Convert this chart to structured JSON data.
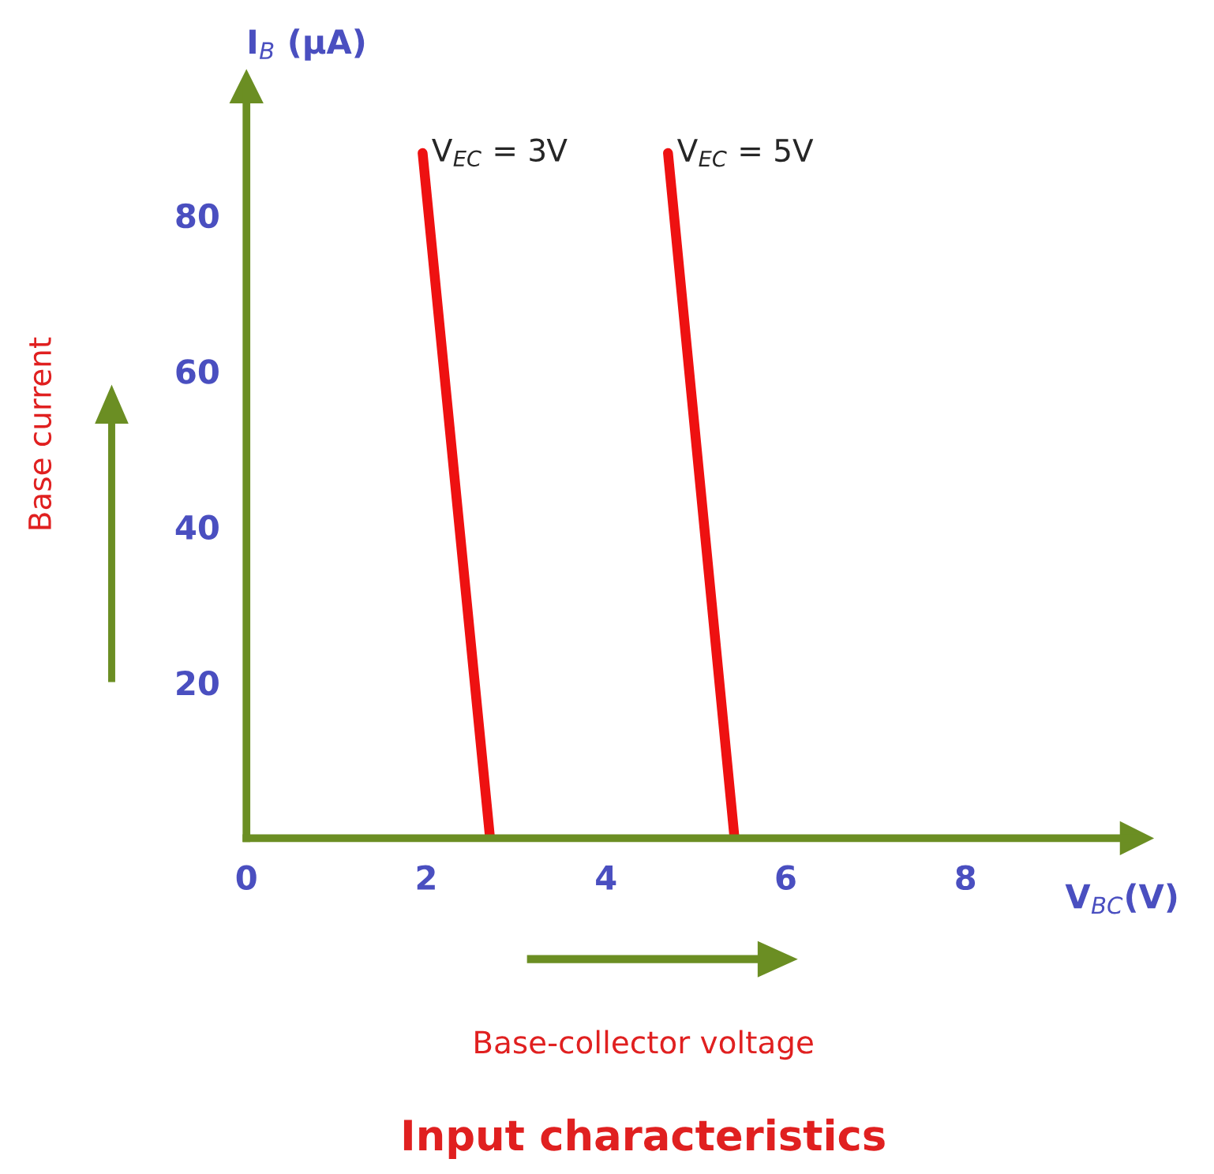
{
  "chart_data": {
    "type": "line",
    "title": "Input characteristics",
    "xlabel": "Base-collector voltage",
    "ylabel": "Base current",
    "annotations": [
      "I$_{B}$ (μA)",
      "V$_{BC}$(V)"
    ],
    "series": [
      {
        "name": "V$_{EC}$ = 3V",
        "color": "#ee1111",
        "x": [
          1.96,
          2.71
        ],
        "values": [
          88,
          0
        ]
      },
      {
        "name": "V$_{EC}$ = 5V",
        "color": "#ee1111",
        "x": [
          4.69,
          5.43
        ],
        "values": [
          88,
          0
        ]
      }
    ],
    "xlim": [
      0,
      9.9
    ],
    "ylim": [
      0,
      96.5
    ],
    "xticks": [
      0,
      2,
      4,
      6,
      8
    ],
    "yticks": [
      20,
      40,
      60,
      80
    ],
    "grid": false,
    "legend": false,
    "marker": "none",
    "line_style": "solid"
  }
}
